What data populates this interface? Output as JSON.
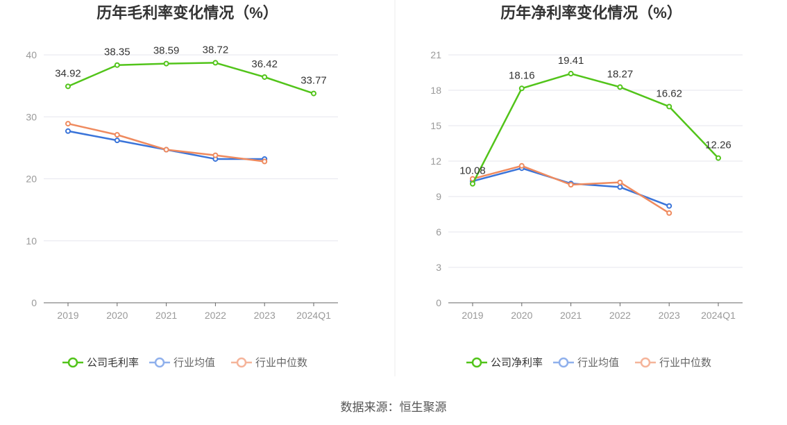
{
  "source_label": "数据来源：恒生聚源",
  "colors": {
    "company": "#52c41a",
    "avg": "#3a74d9",
    "median": "#ef8a5e",
    "grid": "#e6e6ee",
    "axis": "#666666"
  },
  "chart_data": [
    {
      "type": "line",
      "title": "历年毛利率变化情况（%）",
      "categories": [
        "2019",
        "2020",
        "2021",
        "2022",
        "2023",
        "2024Q1"
      ],
      "ylim": [
        0,
        40
      ],
      "yticks": [
        0,
        10,
        20,
        30,
        40
      ],
      "grid": true,
      "legend_position": "bottom",
      "series": [
        {
          "name": "公司毛利率",
          "key": "company",
          "values": [
            34.92,
            38.35,
            38.59,
            38.72,
            36.42,
            33.77
          ],
          "labels": [
            "34.92",
            "38.35",
            "38.59",
            "38.72",
            "36.42",
            "33.77"
          ]
        },
        {
          "name": "行业均值",
          "key": "avg",
          "values": [
            27.7,
            26.2,
            24.7,
            23.2,
            23.2,
            null
          ]
        },
        {
          "name": "行业中位数",
          "key": "median",
          "values": [
            28.9,
            27.1,
            24.7,
            23.8,
            22.8,
            null
          ]
        }
      ]
    },
    {
      "type": "line",
      "title": "历年净利率变化情况（%）",
      "categories": [
        "2019",
        "2020",
        "2021",
        "2022",
        "2023",
        "2024Q1"
      ],
      "ylim": [
        0,
        21
      ],
      "yticks": [
        0,
        3,
        6,
        9,
        12,
        15,
        18,
        21
      ],
      "grid": true,
      "legend_position": "bottom",
      "series": [
        {
          "name": "公司净利率",
          "key": "company",
          "values": [
            10.08,
            18.16,
            19.41,
            18.27,
            16.62,
            12.26
          ],
          "labels": [
            "10.08",
            "18.16",
            "19.41",
            "18.27",
            "16.62",
            "12.26"
          ]
        },
        {
          "name": "行业均值",
          "key": "avg",
          "values": [
            10.3,
            11.4,
            10.1,
            9.8,
            8.2,
            null
          ]
        },
        {
          "name": "行业中位数",
          "key": "median",
          "values": [
            10.5,
            11.6,
            10.0,
            10.2,
            7.6,
            null
          ]
        }
      ]
    }
  ]
}
